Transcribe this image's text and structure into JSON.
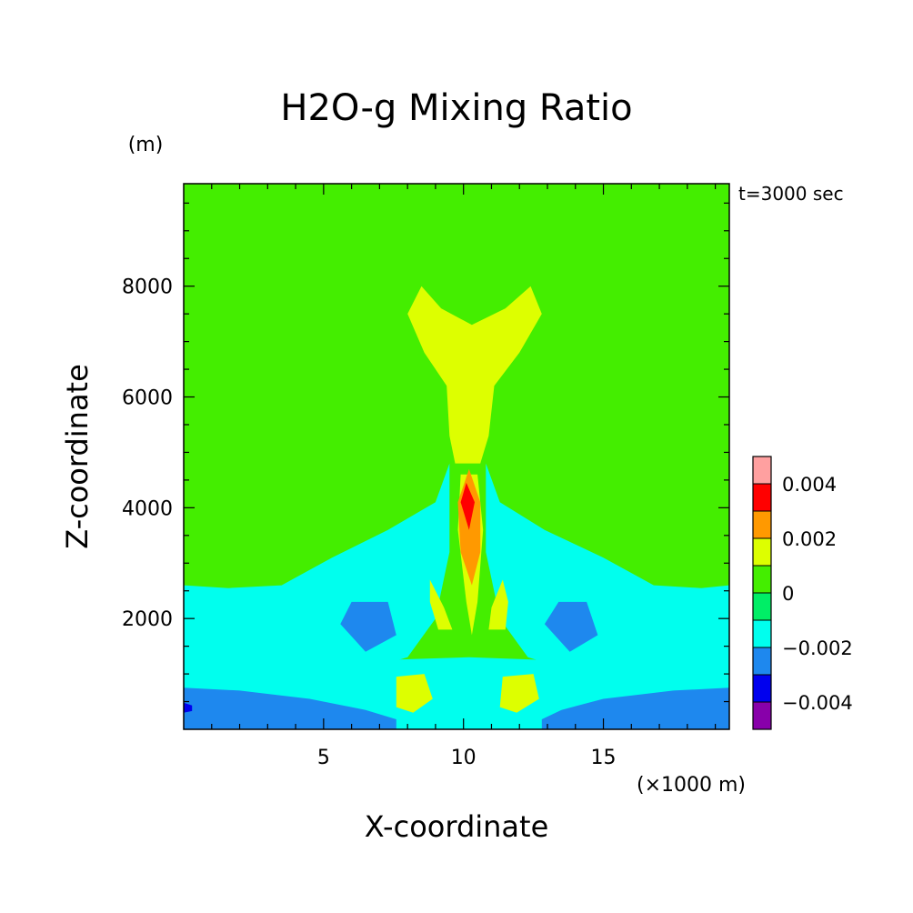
{
  "chart_data": {
    "type": "heatmap",
    "title": "H2O-g Mixing Ratio",
    "time_label": "t=3000 sec",
    "xlabel": "X-coordinate",
    "ylabel": "Z-coordinate",
    "x_unit": "(×1000 m)",
    "y_unit": "(m)",
    "xlim": [
      0,
      19.5
    ],
    "ylim": [
      0,
      9850
    ],
    "x_ticks": [
      5,
      10,
      15
    ],
    "y_ticks": [
      2000,
      4000,
      6000,
      8000
    ],
    "x_tick_labels": [
      "5",
      "10",
      "15"
    ],
    "y_tick_labels": [
      "2000",
      "4000",
      "6000",
      "8000"
    ],
    "colorbar": {
      "levels": [
        -0.005,
        -0.004,
        -0.003,
        -0.002,
        -0.001,
        0,
        0.001,
        0.002,
        0.003,
        0.004,
        0.005
      ],
      "colors": [
        "#8800aa",
        "#0000ee",
        "#1e88ee",
        "#00ffee",
        "#00ee66",
        "#44ee00",
        "#ddff00",
        "#ff9900",
        "#ff0000",
        "#ffa0a0"
      ],
      "tick_values": [
        -0.004,
        -0.002,
        0,
        0.002,
        0.004
      ],
      "tick_labels": [
        "−0.004",
        "−0.002",
        "0",
        "0.002",
        "0.004"
      ]
    },
    "contours": [
      {
        "name": "plume-upper-yellow",
        "level_index": 6,
        "points": [
          [
            8.5,
            8000
          ],
          [
            8,
            7500
          ],
          [
            8.6,
            6800
          ],
          [
            9.4,
            6200
          ],
          [
            9.5,
            5300
          ],
          [
            9.7,
            4800
          ],
          [
            10.6,
            4800
          ],
          [
            10.9,
            5300
          ],
          [
            11.1,
            6200
          ],
          [
            12,
            6800
          ],
          [
            12.8,
            7500
          ],
          [
            12.4,
            8000
          ],
          [
            11.5,
            7600
          ],
          [
            10.3,
            7300
          ],
          [
            9.2,
            7600
          ]
        ]
      },
      {
        "name": "plume-lower-yellow",
        "level_index": 6,
        "points": [
          [
            9.9,
            4600
          ],
          [
            10.5,
            4600
          ],
          [
            10.7,
            3600
          ],
          [
            10.5,
            2300
          ],
          [
            10.3,
            1700
          ],
          [
            10.1,
            2300
          ],
          [
            9.8,
            3600
          ]
        ]
      },
      {
        "name": "low-left-cyan",
        "level_index": 3,
        "points": [
          [
            0,
            2600
          ],
          [
            1.6,
            2550
          ],
          [
            3.5,
            2600
          ],
          [
            5.3,
            3100
          ],
          [
            7.3,
            3600
          ],
          [
            9,
            4100
          ],
          [
            9.5,
            4800
          ],
          [
            9.5,
            3200
          ],
          [
            9,
            2000
          ],
          [
            8,
            1300
          ],
          [
            6,
            1000
          ],
          [
            3,
            950
          ],
          [
            0,
            1100
          ]
        ]
      },
      {
        "name": "low-right-cyan",
        "level_index": 3,
        "points": [
          [
            19.5,
            2600
          ],
          [
            18.5,
            2550
          ],
          [
            16.8,
            2600
          ],
          [
            15,
            3100
          ],
          [
            12.9,
            3600
          ],
          [
            11.3,
            4100
          ],
          [
            10.8,
            4800
          ],
          [
            10.8,
            3200
          ],
          [
            11.3,
            2000
          ],
          [
            12.3,
            1300
          ],
          [
            14.3,
            1000
          ],
          [
            17,
            950
          ],
          [
            19.5,
            1100
          ]
        ]
      },
      {
        "name": "bottom-cyan",
        "level_index": 3,
        "points": [
          [
            0,
            1700
          ],
          [
            4,
            1500
          ],
          [
            7,
            1250
          ],
          [
            10.2,
            1300
          ],
          [
            13,
            1250
          ],
          [
            16,
            1500
          ],
          [
            19.5,
            1700
          ],
          [
            19.5,
            0
          ],
          [
            0,
            0
          ]
        ]
      },
      {
        "name": "bottom-blue",
        "level_index": 2,
        "points": [
          [
            0,
            750
          ],
          [
            2,
            700
          ],
          [
            4.5,
            550
          ],
          [
            6.5,
            350
          ],
          [
            7.6,
            180
          ],
          [
            7.6,
            0
          ],
          [
            0,
            0
          ]
        ]
      },
      {
        "name": "bottom-blue-right",
        "level_index": 2,
        "points": [
          [
            19.5,
            750
          ],
          [
            17.5,
            700
          ],
          [
            15,
            550
          ],
          [
            13.5,
            350
          ],
          [
            12.8,
            180
          ],
          [
            12.8,
            0
          ],
          [
            19.5,
            0
          ]
        ]
      },
      {
        "name": "left-blue-patch",
        "level_index": 2,
        "points": [
          [
            6,
            2300
          ],
          [
            5.6,
            1900
          ],
          [
            6.5,
            1400
          ],
          [
            7.6,
            1700
          ],
          [
            7.3,
            2300
          ]
        ]
      },
      {
        "name": "right-blue-patch",
        "level_index": 2,
        "points": [
          [
            13.4,
            2300
          ],
          [
            12.9,
            1900
          ],
          [
            13.8,
            1400
          ],
          [
            14.8,
            1700
          ],
          [
            14.4,
            2300
          ]
        ]
      },
      {
        "name": "dark-blue-corner",
        "level_index": 1,
        "points": [
          [
            0,
            480
          ],
          [
            0.3,
            430
          ],
          [
            0.3,
            330
          ],
          [
            0,
            300
          ]
        ]
      },
      {
        "name": "core-orange",
        "level_index": 7,
        "points": [
          [
            10.2,
            4700
          ],
          [
            10.6,
            4100
          ],
          [
            10.6,
            3200
          ],
          [
            10.3,
            2600
          ],
          [
            9.9,
            3200
          ],
          [
            9.8,
            4100
          ]
        ]
      },
      {
        "name": "core-red",
        "level_index": 8,
        "points": [
          [
            10.1,
            4450
          ],
          [
            10.4,
            4100
          ],
          [
            10.2,
            3600
          ],
          [
            9.9,
            4100
          ]
        ]
      },
      {
        "name": "lower-left-yellow",
        "level_index": 6,
        "points": [
          [
            7.6,
            950
          ],
          [
            8.6,
            1000
          ],
          [
            8.9,
            550
          ],
          [
            8.2,
            300
          ],
          [
            7.6,
            400
          ]
        ]
      },
      {
        "name": "lower-right-yellow",
        "level_index": 6,
        "points": [
          [
            11.4,
            950
          ],
          [
            12.5,
            1000
          ],
          [
            12.7,
            550
          ],
          [
            11.9,
            300
          ],
          [
            11.3,
            400
          ]
        ]
      },
      {
        "name": "mid-left-yellow",
        "level_index": 6,
        "points": [
          [
            8.8,
            2700
          ],
          [
            9.3,
            2200
          ],
          [
            9.6,
            1800
          ],
          [
            9.1,
            1800
          ],
          [
            8.8,
            2300
          ]
        ]
      },
      {
        "name": "mid-right-yellow",
        "level_index": 6,
        "points": [
          [
            11.4,
            2700
          ],
          [
            11,
            2200
          ],
          [
            10.9,
            1800
          ],
          [
            11.5,
            1800
          ],
          [
            11.6,
            2300
          ]
        ]
      }
    ]
  }
}
